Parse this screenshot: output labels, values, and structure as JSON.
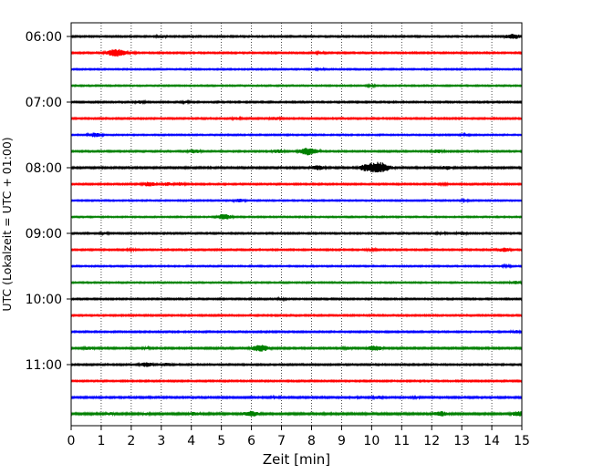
{
  "chart_data": {
    "type": "line",
    "title": "",
    "xlabel": "Zeit  [min]",
    "ylabel": "UTC (Lokalzeit = UTC + 01:00)",
    "xlim": [
      0,
      15
    ],
    "x_ticks": [
      "0",
      "1",
      "2",
      "3",
      "4",
      "5",
      "6",
      "7",
      "8",
      "9",
      "10",
      "11",
      "12",
      "13",
      "14",
      "15"
    ],
    "y_ticks": [
      {
        "label": "06:00",
        "row": 0
      },
      {
        "label": "07:00",
        "row": 4
      },
      {
        "label": "08:00",
        "row": 8
      },
      {
        "label": "09:00",
        "row": 12
      },
      {
        "label": "10:00",
        "row": 16
      },
      {
        "label": "11:00",
        "row": 20
      }
    ],
    "grid": "vertical dotted",
    "row_interval_minutes": 15,
    "row_colors": [
      "#000000",
      "#ff0000",
      "#0000ff",
      "#008000"
    ],
    "traces": [
      {
        "start": "06:00",
        "color": "#000000",
        "amplitude": 0.8,
        "events": [
          [
            3.0,
            1.8
          ],
          [
            14.7,
            3.2
          ]
        ]
      },
      {
        "start": "06:15",
        "color": "#ff0000",
        "amplitude": 0.8,
        "events": [
          [
            1.5,
            4.5
          ],
          [
            2.0,
            1.6
          ],
          [
            8.3,
            1.5
          ]
        ]
      },
      {
        "start": "06:30",
        "color": "#0000ff",
        "amplitude": 0.7,
        "events": [
          [
            8.3,
            1.4
          ]
        ]
      },
      {
        "start": "06:45",
        "color": "#008000",
        "amplitude": 0.7,
        "events": [
          [
            10.0,
            1.4
          ]
        ]
      },
      {
        "start": "07:00",
        "color": "#000000",
        "amplitude": 0.8,
        "events": [
          [
            2.3,
            1.8
          ],
          [
            3.8,
            1.6
          ]
        ]
      },
      {
        "start": "07:15",
        "color": "#ff0000",
        "amplitude": 0.8,
        "events": [
          [
            5.5,
            1.7
          ],
          [
            6.8,
            2.0
          ]
        ]
      },
      {
        "start": "07:30",
        "color": "#0000ff",
        "amplitude": 0.7,
        "events": [
          [
            0.8,
            2.6
          ],
          [
            13.1,
            1.6
          ]
        ]
      },
      {
        "start": "07:45",
        "color": "#008000",
        "amplitude": 0.8,
        "events": [
          [
            4.1,
            2.6
          ],
          [
            6.9,
            2.2
          ],
          [
            7.9,
            4.4
          ],
          [
            12.2,
            2.2
          ]
        ]
      },
      {
        "start": "08:00",
        "color": "#000000",
        "amplitude": 0.9,
        "events": [
          [
            8.2,
            2.8
          ],
          [
            10.0,
            5.5
          ],
          [
            10.2,
            6.5
          ],
          [
            12.5,
            2.4
          ]
        ]
      },
      {
        "start": "08:15",
        "color": "#ff0000",
        "amplitude": 0.8,
        "events": [
          [
            2.6,
            2.6
          ],
          [
            3.2,
            2.2
          ],
          [
            3.6,
            2.2
          ],
          [
            12.4,
            1.4
          ]
        ]
      },
      {
        "start": "08:30",
        "color": "#0000ff",
        "amplitude": 0.7,
        "events": [
          [
            5.6,
            2.0
          ],
          [
            13.1,
            1.4
          ]
        ]
      },
      {
        "start": "08:45",
        "color": "#008000",
        "amplitude": 0.7,
        "events": [
          [
            5.1,
            3.2
          ]
        ]
      },
      {
        "start": "09:00",
        "color": "#000000",
        "amplitude": 0.8,
        "events": [
          [
            1.1,
            1.5
          ],
          [
            12.3,
            1.6
          ],
          [
            13.0,
            1.8
          ]
        ]
      },
      {
        "start": "09:15",
        "color": "#ff0000",
        "amplitude": 0.8,
        "events": [
          [
            2.0,
            1.5
          ],
          [
            10.0,
            1.6
          ],
          [
            14.4,
            2.4
          ]
        ]
      },
      {
        "start": "09:30",
        "color": "#0000ff",
        "amplitude": 0.7,
        "events": [
          [
            14.5,
            1.4
          ]
        ]
      },
      {
        "start": "09:45",
        "color": "#008000",
        "amplitude": 0.7,
        "events": [
          [
            14.8,
            2.0
          ]
        ]
      },
      {
        "start": "10:00",
        "color": "#000000",
        "amplitude": 0.8,
        "events": [
          [
            7.0,
            1.6
          ]
        ]
      },
      {
        "start": "10:15",
        "color": "#ff0000",
        "amplitude": 0.8,
        "events": []
      },
      {
        "start": "10:30",
        "color": "#0000ff",
        "amplitude": 0.8,
        "events": [
          [
            14.8,
            1.8
          ]
        ]
      },
      {
        "start": "10:45",
        "color": "#008000",
        "amplitude": 0.9,
        "events": [
          [
            0.6,
            2.0
          ],
          [
            2.5,
            1.6
          ],
          [
            6.3,
            4.0
          ],
          [
            9.2,
            1.8
          ],
          [
            10.1,
            3.0
          ]
        ]
      },
      {
        "start": "11:00",
        "color": "#000000",
        "amplitude": 0.8,
        "events": [
          [
            2.5,
            2.6
          ],
          [
            3.2,
            2.0
          ]
        ]
      },
      {
        "start": "11:15",
        "color": "#ff0000",
        "amplitude": 0.8,
        "events": []
      },
      {
        "start": "11:30",
        "color": "#0000ff",
        "amplitude": 0.9,
        "events": [
          [
            6.8,
            1.6
          ],
          [
            9.4,
            1.6
          ],
          [
            10.2,
            2.0
          ],
          [
            11.5,
            1.5
          ]
        ]
      },
      {
        "start": "11:45",
        "color": "#008000",
        "amplitude": 1.0,
        "events": [
          [
            1.3,
            1.8
          ],
          [
            2.5,
            1.8
          ],
          [
            4.1,
            2.2
          ],
          [
            6.0,
            3.4
          ],
          [
            12.3,
            3.0
          ],
          [
            14.9,
            3.0
          ]
        ]
      }
    ]
  }
}
